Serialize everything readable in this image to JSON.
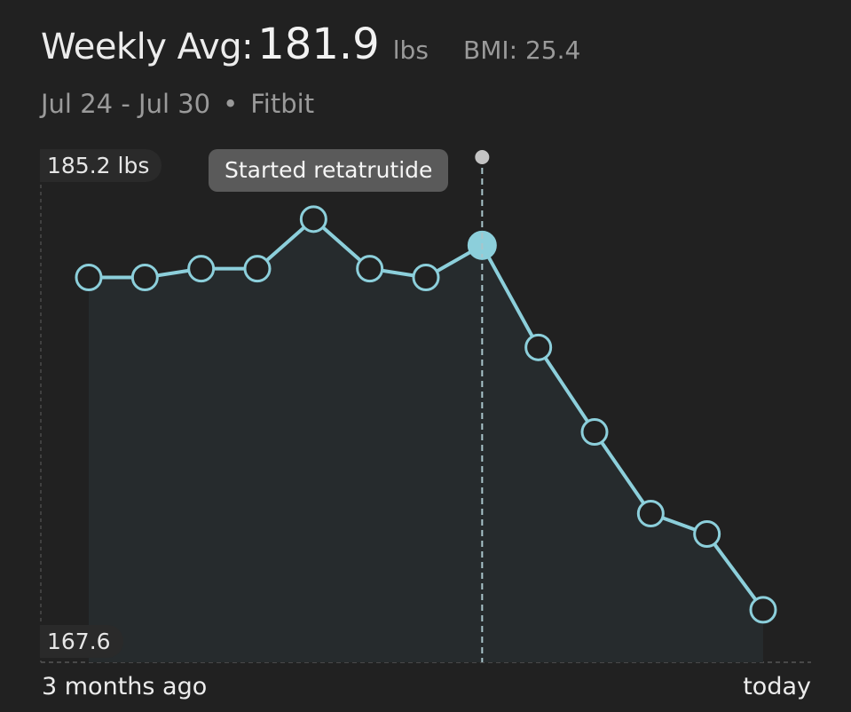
{
  "header": {
    "title_prefix": "Weekly Avg:",
    "value": "181.9",
    "unit": "lbs",
    "bmi": "BMI: 25.4"
  },
  "subheader": {
    "range": "Jul 24 - Jul 30",
    "separator": "•",
    "source": "Fitbit"
  },
  "chart_data": {
    "type": "line",
    "y_max_label": "185.2 lbs",
    "y_min_label": "167.6",
    "ylim": [
      167.6,
      185.2
    ],
    "x_start_label": "3 months ago",
    "x_end_label": "today",
    "values": [
      180.8,
      180.8,
      181.1,
      181.1,
      182.8,
      181.1,
      180.8,
      181.9,
      178.4,
      175.5,
      172.7,
      172.0,
      169.4
    ],
    "highlight_index": 7,
    "annotation": {
      "index": 7,
      "label": "Started retatrutide"
    },
    "line_color": "#8ccfdb",
    "fill_color": "#262b2d",
    "background": "#212121"
  }
}
